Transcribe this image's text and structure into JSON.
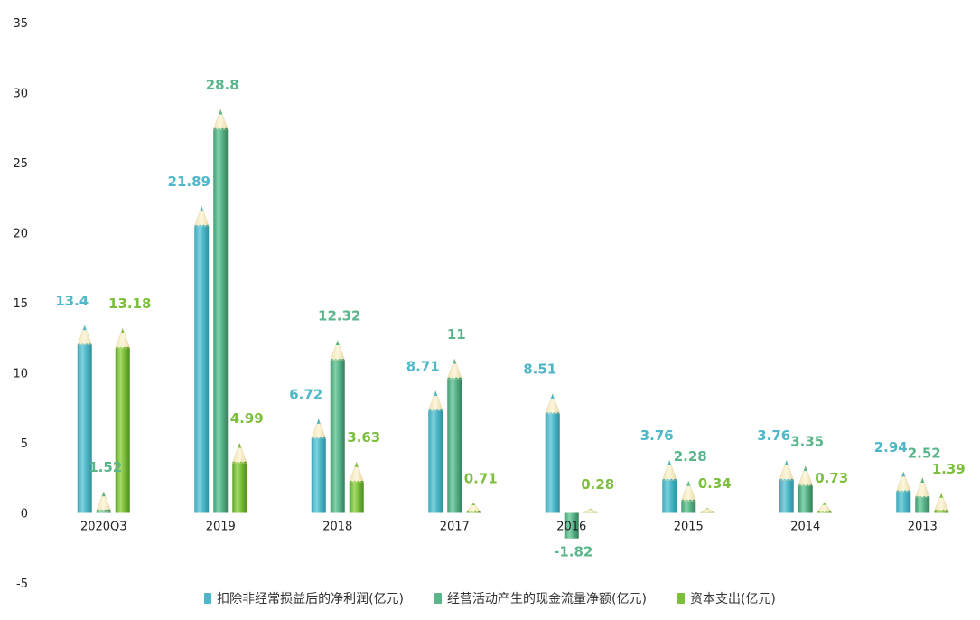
{
  "chart_data": {
    "type": "bar",
    "categories": [
      "2020Q3",
      "2019",
      "2018",
      "2017",
      "2016",
      "2015",
      "2014",
      "2013"
    ],
    "series": [
      {
        "name": "扣除非经常损益后的净利润(亿元)",
        "values": [
          13.4,
          21.89,
          6.72,
          8.71,
          8.51,
          3.76,
          3.76,
          2.94
        ],
        "color": "#4fb8c8",
        "label_color": "#4fb8c8"
      },
      {
        "name": "经营活动产生的现金流量净额(亿元)",
        "values": [
          1.52,
          28.8,
          12.32,
          11,
          -1.82,
          2.28,
          3.35,
          2.52
        ],
        "color": "#5ab58a",
        "label_color": "#5ab58a"
      },
      {
        "name": "资本支出(亿元)",
        "values": [
          13.18,
          4.99,
          3.63,
          0.71,
          0.28,
          0.34,
          0.73,
          1.39
        ],
        "color": "#7cbf3c",
        "label_color": "#7cbf3c"
      }
    ],
    "ylim": [
      -5,
      35
    ],
    "yticks": [
      -5,
      0,
      5,
      10,
      15,
      20,
      25,
      30,
      35
    ],
    "legend_position": "bottom",
    "grid": false,
    "style": "pencil-columns"
  }
}
